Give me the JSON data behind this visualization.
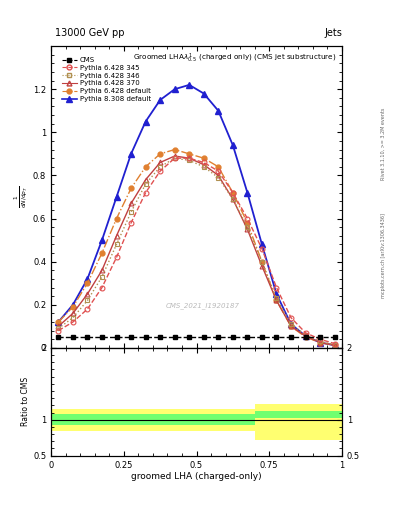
{
  "title_top": "13000 GeV pp",
  "title_right": "Jets",
  "plot_title": "Groomed LHA\\lambda_{0.5}^{1} (charged only) (CMS jet substructure)",
  "xlabel": "groomed LHA (charged-only)",
  "watermark": "CMS_2021_I1920187",
  "right_label": "mcplots.cern.ch [arXiv:1306.3436]",
  "right_label2": "Rivet 3.1.10, >= 3.2M events",
  "cms_x": [
    0.025,
    0.075,
    0.125,
    0.175,
    0.225,
    0.275,
    0.325,
    0.375,
    0.425,
    0.475,
    0.525,
    0.575,
    0.625,
    0.675,
    0.725,
    0.775,
    0.825,
    0.875,
    0.925,
    0.975
  ],
  "cms_y": [
    0.05,
    0.05,
    0.05,
    0.05,
    0.05,
    0.05,
    0.05,
    0.05,
    0.05,
    0.05,
    0.05,
    0.05,
    0.05,
    0.05,
    0.05,
    0.05,
    0.05,
    0.05,
    0.05,
    0.05
  ],
  "p6_345_x": [
    0.025,
    0.075,
    0.125,
    0.175,
    0.225,
    0.275,
    0.325,
    0.375,
    0.425,
    0.475,
    0.525,
    0.575,
    0.625,
    0.675,
    0.725,
    0.775,
    0.825,
    0.875,
    0.925,
    0.975
  ],
  "p6_345_y": [
    0.08,
    0.12,
    0.18,
    0.28,
    0.42,
    0.58,
    0.72,
    0.82,
    0.88,
    0.88,
    0.86,
    0.82,
    0.72,
    0.6,
    0.46,
    0.28,
    0.14,
    0.07,
    0.04,
    0.02
  ],
  "p6_346_x": [
    0.025,
    0.075,
    0.125,
    0.175,
    0.225,
    0.275,
    0.325,
    0.375,
    0.425,
    0.475,
    0.525,
    0.575,
    0.625,
    0.675,
    0.725,
    0.775,
    0.825,
    0.875,
    0.925,
    0.975
  ],
  "p6_346_y": [
    0.09,
    0.14,
    0.22,
    0.33,
    0.48,
    0.63,
    0.76,
    0.84,
    0.88,
    0.87,
    0.84,
    0.79,
    0.69,
    0.56,
    0.4,
    0.23,
    0.11,
    0.06,
    0.03,
    0.015
  ],
  "p6_370_x": [
    0.025,
    0.075,
    0.125,
    0.175,
    0.225,
    0.275,
    0.325,
    0.375,
    0.425,
    0.475,
    0.525,
    0.575,
    0.625,
    0.675,
    0.725,
    0.775,
    0.825,
    0.875,
    0.925,
    0.975
  ],
  "p6_370_y": [
    0.1,
    0.16,
    0.25,
    0.36,
    0.52,
    0.67,
    0.78,
    0.86,
    0.89,
    0.88,
    0.85,
    0.8,
    0.69,
    0.55,
    0.38,
    0.22,
    0.1,
    0.055,
    0.025,
    0.012
  ],
  "p6_def_x": [
    0.025,
    0.075,
    0.125,
    0.175,
    0.225,
    0.275,
    0.325,
    0.375,
    0.425,
    0.475,
    0.525,
    0.575,
    0.625,
    0.675,
    0.725,
    0.775,
    0.825,
    0.875,
    0.925,
    0.975
  ],
  "p6_def_y": [
    0.12,
    0.19,
    0.3,
    0.44,
    0.6,
    0.74,
    0.84,
    0.9,
    0.92,
    0.9,
    0.88,
    0.84,
    0.72,
    0.58,
    0.4,
    0.22,
    0.1,
    0.05,
    0.025,
    0.012
  ],
  "p8_def_x": [
    0.025,
    0.075,
    0.125,
    0.175,
    0.225,
    0.275,
    0.325,
    0.375,
    0.425,
    0.475,
    0.525,
    0.575,
    0.625,
    0.675,
    0.725,
    0.775,
    0.825,
    0.875,
    0.925,
    0.975
  ],
  "p8_def_y": [
    0.12,
    0.2,
    0.32,
    0.5,
    0.7,
    0.9,
    1.05,
    1.15,
    1.2,
    1.22,
    1.18,
    1.1,
    0.94,
    0.72,
    0.48,
    0.25,
    0.11,
    0.055,
    0.025,
    0.012
  ],
  "ratio_x_edges": [
    0.0,
    0.1,
    0.2,
    0.3,
    0.4,
    0.5,
    0.6,
    0.7,
    0.75,
    1.0
  ],
  "ratio_green_lo": [
    0.92,
    0.92,
    0.92,
    0.92,
    0.92,
    0.92,
    0.92,
    1.02,
    1.02
  ],
  "ratio_green_hi": [
    1.08,
    1.08,
    1.08,
    1.08,
    1.08,
    1.08,
    1.08,
    1.12,
    1.12
  ],
  "ratio_yellow_lo": [
    0.85,
    0.85,
    0.85,
    0.85,
    0.85,
    0.85,
    0.85,
    0.72,
    0.72
  ],
  "ratio_yellow_hi": [
    1.15,
    1.15,
    1.15,
    1.15,
    1.15,
    1.15,
    1.15,
    1.22,
    1.22
  ],
  "color_p6_345": "#e05050",
  "color_p6_346": "#b09050",
  "color_p6_370": "#c04040",
  "color_p6_def": "#e08030",
  "color_p8_def": "#2020d0",
  "color_cms": "#000000",
  "ylim_main": [
    0.0,
    1.4
  ],
  "ylim_ratio": [
    0.5,
    2.0
  ],
  "xlim": [
    0.0,
    1.0
  ]
}
